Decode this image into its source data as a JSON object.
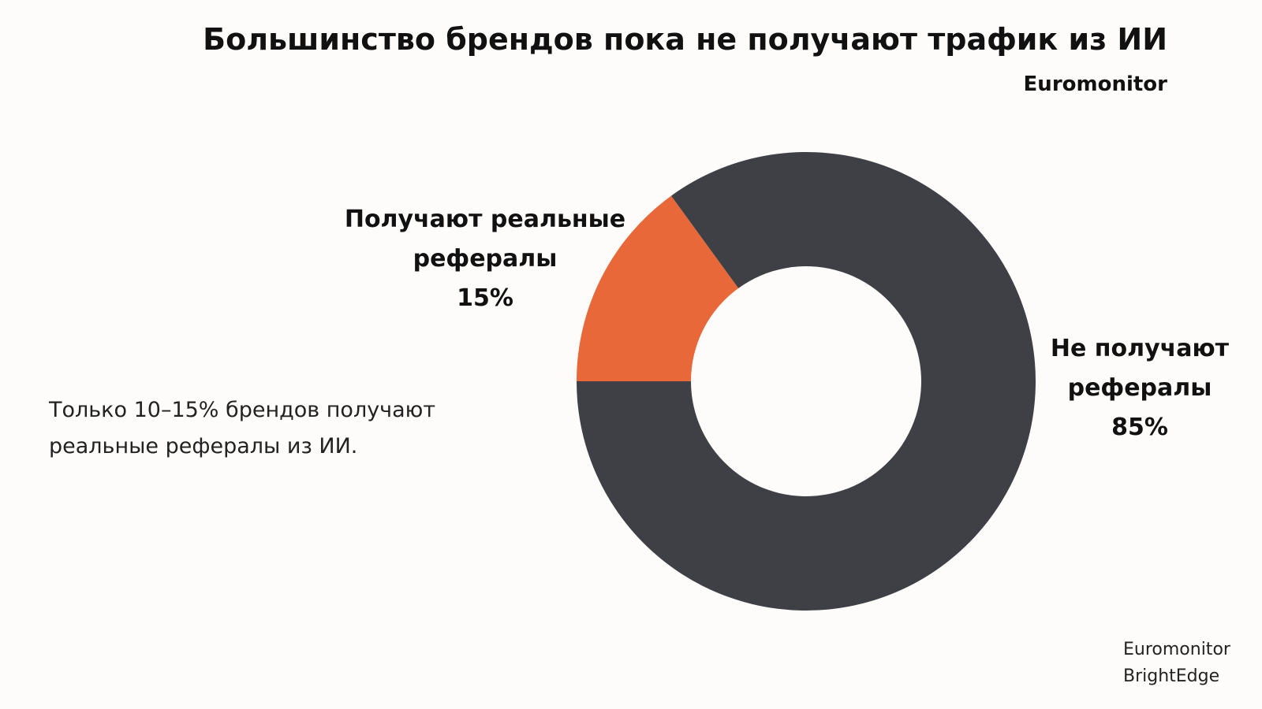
{
  "chart_data": {
    "type": "donut",
    "title": "Большинство брендов пока не получают трафик из ИИ",
    "subtitle": "Euromonitor",
    "categories": [
      "Получают реальные рефералы",
      "Не получают рефералы"
    ],
    "values": [
      15,
      85
    ],
    "value_labels": [
      "15%",
      "85%"
    ],
    "colors": [
      "#e8683a",
      "#3f4045"
    ],
    "note": "Только 10–15% брендов получают реальные рефералы из ИИ.",
    "sources": [
      "Euromonitor",
      "BrightEdge"
    ]
  }
}
